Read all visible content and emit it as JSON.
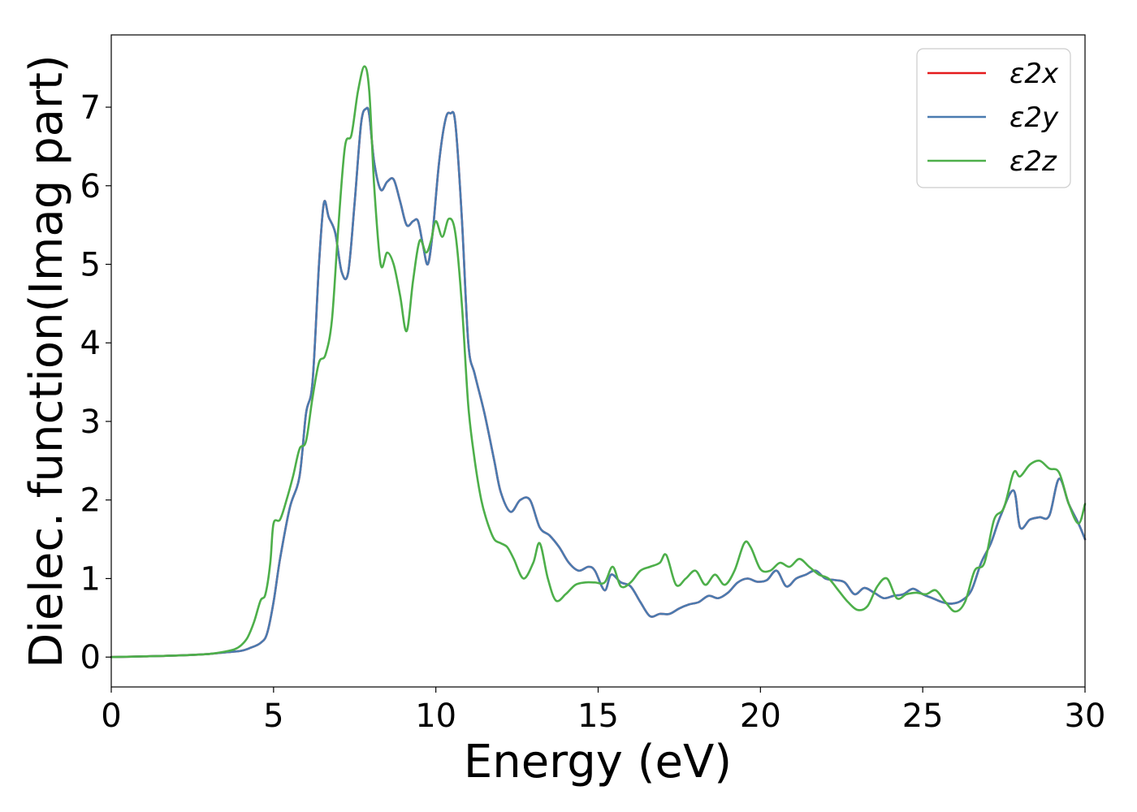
{
  "chart_data": {
    "type": "line",
    "title": "",
    "xlabel": "Energy (eV)",
    "ylabel": "Dielec. function(Imag part)",
    "xlim": [
      0,
      30
    ],
    "ylim": [
      -0.38,
      7.92
    ],
    "xticks": [
      0,
      5,
      10,
      15,
      20,
      25,
      30
    ],
    "yticks": [
      0,
      1,
      2,
      3,
      4,
      5,
      6,
      7
    ],
    "grid": false,
    "legend_position": "top-right",
    "series": [
      {
        "name": "ε2x",
        "color": "#e41a1c",
        "x": [
          0,
          1,
          2,
          3,
          3.5,
          4,
          4.3,
          4.6,
          4.8,
          5.0,
          5.2,
          5.5,
          5.8,
          6.0,
          6.2,
          6.4,
          6.55,
          6.7,
          6.9,
          7.1,
          7.3,
          7.5,
          7.7,
          7.85,
          7.95,
          8.1,
          8.3,
          8.5,
          8.7,
          8.9,
          9.1,
          9.3,
          9.45,
          9.6,
          9.75,
          9.9,
          10.1,
          10.3,
          10.45,
          10.6,
          10.8,
          11.0,
          11.2,
          11.5,
          11.8,
          12.0,
          12.3,
          12.6,
          12.9,
          13.2,
          13.5,
          13.8,
          14.1,
          14.4,
          14.7,
          14.9,
          15.2,
          15.4,
          15.7,
          16.0,
          16.3,
          16.6,
          16.9,
          17.2,
          17.5,
          17.8,
          18.1,
          18.4,
          18.7,
          19.0,
          19.3,
          19.6,
          19.9,
          20.2,
          20.5,
          20.8,
          21.1,
          21.4,
          21.7,
          22.0,
          22.3,
          22.6,
          22.9,
          23.2,
          23.5,
          23.8,
          24.1,
          24.4,
          24.7,
          25.0,
          25.3,
          25.6,
          25.9,
          26.2,
          26.5,
          26.8,
          27.1,
          27.4,
          27.8,
          28.0,
          28.3,
          28.6,
          28.9,
          29.2,
          29.5,
          29.8,
          30.0
        ],
        "y": [
          0,
          0.01,
          0.02,
          0.04,
          0.06,
          0.08,
          0.12,
          0.18,
          0.3,
          0.7,
          1.25,
          1.9,
          2.3,
          3.1,
          3.5,
          5.0,
          5.78,
          5.6,
          5.4,
          4.9,
          4.9,
          5.8,
          6.8,
          6.98,
          6.9,
          6.3,
          5.95,
          6.05,
          6.08,
          5.8,
          5.5,
          5.55,
          5.55,
          5.25,
          5.0,
          5.4,
          6.3,
          6.85,
          6.92,
          6.8,
          5.6,
          4.0,
          3.6,
          3.1,
          2.5,
          2.1,
          1.85,
          2.0,
          2.0,
          1.65,
          1.55,
          1.4,
          1.2,
          1.1,
          1.15,
          1.1,
          0.85,
          1.05,
          0.95,
          0.9,
          0.7,
          0.52,
          0.55,
          0.55,
          0.62,
          0.67,
          0.7,
          0.78,
          0.75,
          0.82,
          0.95,
          1.0,
          0.96,
          0.98,
          1.1,
          0.9,
          1.0,
          1.05,
          1.1,
          1.0,
          0.98,
          0.95,
          0.8,
          0.88,
          0.82,
          0.75,
          0.78,
          0.8,
          0.87,
          0.8,
          0.75,
          0.7,
          0.68,
          0.72,
          0.85,
          1.2,
          1.45,
          1.8,
          2.12,
          1.65,
          1.75,
          1.78,
          1.8,
          2.27,
          1.95,
          1.7,
          1.5
        ]
      },
      {
        "name": "ε2y",
        "color": "#4a7bb0",
        "x": [
          0,
          1,
          2,
          3,
          3.5,
          4,
          4.3,
          4.6,
          4.8,
          5.0,
          5.2,
          5.5,
          5.8,
          6.0,
          6.2,
          6.4,
          6.55,
          6.7,
          6.9,
          7.1,
          7.3,
          7.5,
          7.7,
          7.85,
          7.95,
          8.1,
          8.3,
          8.5,
          8.7,
          8.9,
          9.1,
          9.3,
          9.45,
          9.6,
          9.75,
          9.9,
          10.1,
          10.3,
          10.45,
          10.6,
          10.8,
          11.0,
          11.2,
          11.5,
          11.8,
          12.0,
          12.3,
          12.6,
          12.9,
          13.2,
          13.5,
          13.8,
          14.1,
          14.4,
          14.7,
          14.9,
          15.2,
          15.4,
          15.7,
          16.0,
          16.3,
          16.6,
          16.9,
          17.2,
          17.5,
          17.8,
          18.1,
          18.4,
          18.7,
          19.0,
          19.3,
          19.6,
          19.9,
          20.2,
          20.5,
          20.8,
          21.1,
          21.4,
          21.7,
          22.0,
          22.3,
          22.6,
          22.9,
          23.2,
          23.5,
          23.8,
          24.1,
          24.4,
          24.7,
          25.0,
          25.3,
          25.6,
          25.9,
          26.2,
          26.5,
          26.8,
          27.1,
          27.4,
          27.8,
          28.0,
          28.3,
          28.6,
          28.9,
          29.2,
          29.5,
          29.8,
          30.0
        ],
        "y": [
          0,
          0.01,
          0.02,
          0.04,
          0.06,
          0.08,
          0.12,
          0.18,
          0.3,
          0.7,
          1.25,
          1.9,
          2.3,
          3.1,
          3.5,
          5.0,
          5.78,
          5.6,
          5.4,
          4.9,
          4.9,
          5.8,
          6.8,
          6.98,
          6.9,
          6.3,
          5.95,
          6.05,
          6.08,
          5.8,
          5.5,
          5.55,
          5.55,
          5.25,
          5.0,
          5.4,
          6.3,
          6.85,
          6.92,
          6.8,
          5.6,
          4.0,
          3.6,
          3.1,
          2.5,
          2.1,
          1.85,
          2.0,
          2.0,
          1.65,
          1.55,
          1.4,
          1.2,
          1.1,
          1.15,
          1.1,
          0.85,
          1.05,
          0.95,
          0.9,
          0.7,
          0.52,
          0.55,
          0.55,
          0.62,
          0.67,
          0.7,
          0.78,
          0.75,
          0.82,
          0.95,
          1.0,
          0.96,
          0.98,
          1.1,
          0.9,
          1.0,
          1.05,
          1.1,
          1.0,
          0.98,
          0.95,
          0.8,
          0.88,
          0.82,
          0.75,
          0.78,
          0.8,
          0.87,
          0.8,
          0.75,
          0.7,
          0.68,
          0.72,
          0.85,
          1.2,
          1.45,
          1.8,
          2.12,
          1.65,
          1.75,
          1.78,
          1.8,
          2.27,
          1.95,
          1.7,
          1.5
        ]
      },
      {
        "name": "ε2z",
        "color": "#4daf4a",
        "x": [
          0,
          1,
          2,
          3,
          3.5,
          3.8,
          4.0,
          4.2,
          4.4,
          4.6,
          4.75,
          4.9,
          5.0,
          5.2,
          5.4,
          5.6,
          5.8,
          6.0,
          6.2,
          6.4,
          6.6,
          6.8,
          7.0,
          7.2,
          7.4,
          7.6,
          7.8,
          7.95,
          8.1,
          8.3,
          8.5,
          8.7,
          8.9,
          9.1,
          9.3,
          9.5,
          9.7,
          9.85,
          10.0,
          10.2,
          10.4,
          10.6,
          10.8,
          11.0,
          11.2,
          11.4,
          11.6,
          11.8,
          12.0,
          12.2,
          12.4,
          12.7,
          13.0,
          13.2,
          13.45,
          13.7,
          14.0,
          14.3,
          14.6,
          14.9,
          15.2,
          15.45,
          15.7,
          16.0,
          16.3,
          16.6,
          16.9,
          17.1,
          17.4,
          17.7,
          18.0,
          18.3,
          18.6,
          18.9,
          19.2,
          19.5,
          19.7,
          20.0,
          20.3,
          20.6,
          20.9,
          21.2,
          21.5,
          21.8,
          22.1,
          22.4,
          22.7,
          23.0,
          23.3,
          23.6,
          23.9,
          24.2,
          24.5,
          24.8,
          25.1,
          25.4,
          25.7,
          26.0,
          26.3,
          26.6,
          26.9,
          27.2,
          27.5,
          27.8,
          28.0,
          28.3,
          28.6,
          28.9,
          29.2,
          29.5,
          29.8,
          30.0
        ],
        "y": [
          0,
          0.01,
          0.02,
          0.04,
          0.07,
          0.1,
          0.15,
          0.25,
          0.45,
          0.72,
          0.8,
          1.2,
          1.7,
          1.75,
          2.0,
          2.3,
          2.65,
          2.75,
          3.3,
          3.75,
          3.85,
          4.3,
          5.5,
          6.5,
          6.65,
          7.2,
          7.52,
          7.2,
          6.0,
          5.0,
          5.15,
          5.0,
          4.6,
          4.15,
          4.8,
          5.3,
          5.15,
          5.3,
          5.55,
          5.35,
          5.58,
          5.4,
          4.5,
          3.2,
          2.5,
          2.0,
          1.7,
          1.5,
          1.45,
          1.4,
          1.25,
          1.0,
          1.2,
          1.45,
          1.0,
          0.72,
          0.8,
          0.92,
          0.95,
          0.95,
          0.95,
          1.15,
          0.9,
          0.95,
          1.1,
          1.15,
          1.2,
          1.3,
          0.92,
          1.0,
          1.1,
          0.92,
          1.05,
          0.92,
          1.1,
          1.45,
          1.4,
          1.12,
          1.1,
          1.2,
          1.15,
          1.25,
          1.15,
          1.05,
          1.0,
          0.85,
          0.7,
          0.6,
          0.65,
          0.9,
          1.0,
          0.75,
          0.8,
          0.82,
          0.8,
          0.85,
          0.7,
          0.58,
          0.7,
          1.1,
          1.2,
          1.75,
          1.9,
          2.35,
          2.3,
          2.45,
          2.5,
          2.4,
          2.35,
          1.95,
          1.7,
          1.95
        ]
      }
    ]
  }
}
